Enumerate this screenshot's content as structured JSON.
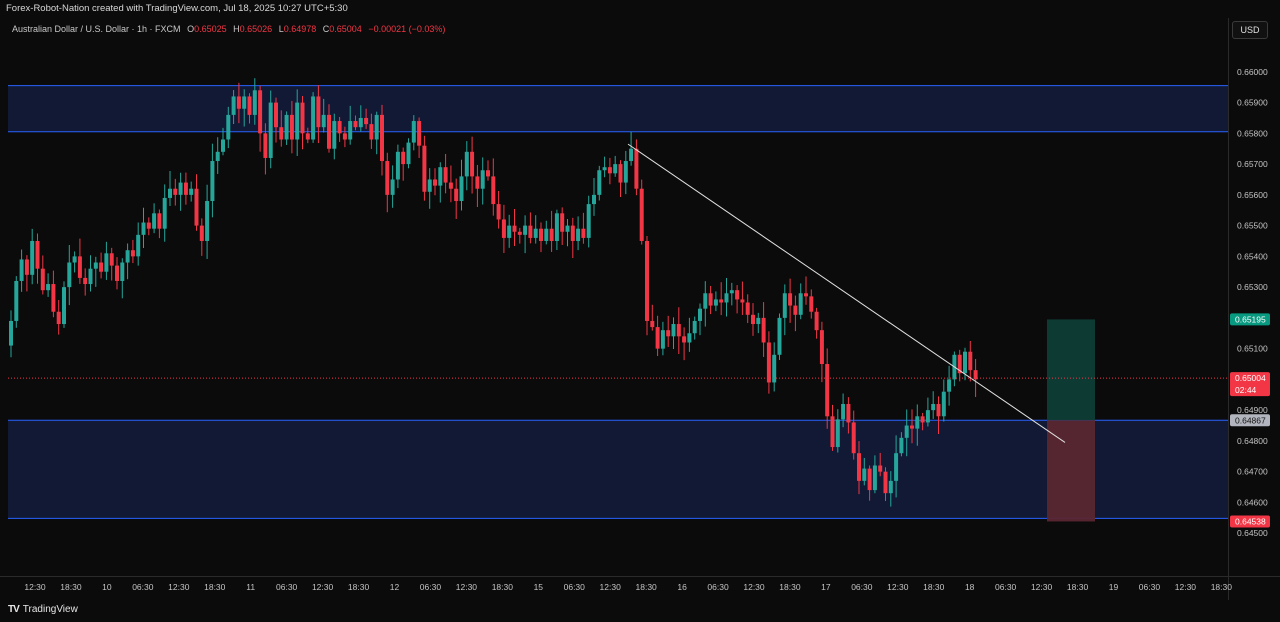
{
  "header": {
    "credit": "Forex-Robot-Nation created with TradingView.com, Jul 18, 2025 10:27 UTC+5:30",
    "symbol": "Australian Dollar / U.S. Dollar · 1h · FXCM",
    "open_label": "O",
    "open": "0.65025",
    "high_label": "H",
    "high": "0.65026",
    "low_label": "L",
    "low": "0.64978",
    "close_label": "C",
    "close": "0.65004",
    "change": "−0.00021 (−0.03%)",
    "currency_button": "USD"
  },
  "footer": {
    "brand": "TradingView",
    "brand_logo": "TV"
  },
  "colors": {
    "background": "#0b0b0b",
    "up": "#26a69a",
    "down": "#f23645",
    "zone_fill": "#121b3a",
    "zone_line": "#2962ff",
    "trendline": "#e0e0e0",
    "target_fill": "#0e3d36",
    "stop_fill": "#5a2630"
  },
  "chart_data": {
    "type": "candlestick",
    "y_ticks": [
      "0.66000",
      "0.65900",
      "0.65800",
      "0.65700",
      "0.65600",
      "0.65500",
      "0.65400",
      "0.65300",
      "0.65100",
      "0.64900",
      "0.64800",
      "0.64700",
      "0.64600",
      "0.64500"
    ],
    "ylim": [
      0.64455,
      0.66045
    ],
    "x_ticks": [
      "12:30",
      "18:30",
      "10",
      "06:30",
      "12:30",
      "18:30",
      "11",
      "06:30",
      "12:30",
      "18:30",
      "12",
      "06:30",
      "12:30",
      "18:30",
      "15",
      "06:30",
      "12:30",
      "18:30",
      "16",
      "06:30",
      "12:30",
      "18:30",
      "17",
      "06:30",
      "12:30",
      "18:30",
      "18",
      "06:30",
      "12:30",
      "18:30",
      "19",
      "06:30",
      "12:30",
      "18:30"
    ],
    "price_tags": [
      {
        "label": "0.65195",
        "value": 0.65195,
        "color": "#089981"
      },
      {
        "label": "0.65004",
        "value": 0.65004,
        "color": "#f23645",
        "sub": "02:44"
      },
      {
        "label": "0.64867",
        "value": 0.64867,
        "color": "#b2b5be"
      },
      {
        "label": "0.64538",
        "value": 0.64538,
        "color": "#f23645"
      }
    ],
    "zones": [
      {
        "top": 0.65955,
        "bottom": 0.65805
      },
      {
        "top": 0.64867,
        "bottom": 0.64548
      }
    ],
    "trendline": {
      "from": [
        0.65765
      ],
      "to": [
        0.64795
      ]
    },
    "position": {
      "entry": 0.64867,
      "target": 0.65195,
      "stop": 0.64538
    },
    "current_price": 0.65004,
    "closes": [
      0.6519,
      0.6532,
      0.6539,
      0.6534,
      0.6545,
      0.6536,
      0.6529,
      0.6531,
      0.6522,
      0.6518,
      0.653,
      0.6538,
      0.654,
      0.6533,
      0.6531,
      0.6536,
      0.6538,
      0.6535,
      0.6541,
      0.6537,
      0.6532,
      0.6538,
      0.6542,
      0.654,
      0.6547,
      0.6551,
      0.6549,
      0.6554,
      0.6549,
      0.6559,
      0.6562,
      0.656,
      0.6564,
      0.656,
      0.6562,
      0.655,
      0.6545,
      0.6558,
      0.6571,
      0.6574,
      0.6578,
      0.6586,
      0.6592,
      0.6588,
      0.6592,
      0.6586,
      0.6594,
      0.658,
      0.6572,
      0.659,
      0.6582,
      0.6578,
      0.6586,
      0.6578,
      0.659,
      0.658,
      0.6578,
      0.6592,
      0.6582,
      0.6586,
      0.6575,
      0.6584,
      0.658,
      0.6578,
      0.6584,
      0.6582,
      0.6585,
      0.6583,
      0.6578,
      0.6586,
      0.6571,
      0.656,
      0.6565,
      0.6574,
      0.657,
      0.6577,
      0.6584,
      0.6576,
      0.6561,
      0.6565,
      0.6563,
      0.6569,
      0.6564,
      0.6562,
      0.6558,
      0.6566,
      0.6574,
      0.6566,
      0.6562,
      0.6568,
      0.6566,
      0.6557,
      0.6552,
      0.6546,
      0.655,
      0.6548,
      0.6547,
      0.655,
      0.6546,
      0.6549,
      0.6545,
      0.6549,
      0.6545,
      0.6554,
      0.6548,
      0.655,
      0.6545,
      0.6549,
      0.6546,
      0.6557,
      0.656,
      0.6568,
      0.6569,
      0.6567,
      0.657,
      0.6564,
      0.6571,
      0.6575,
      0.6562,
      0.6545,
      0.6519,
      0.6517,
      0.651,
      0.6516,
      0.6514,
      0.6518,
      0.6514,
      0.6512,
      0.6515,
      0.6519,
      0.6523,
      0.6528,
      0.6524,
      0.6526,
      0.6525,
      0.6528,
      0.6529,
      0.6526,
      0.6525,
      0.6521,
      0.6518,
      0.652,
      0.6512,
      0.6499,
      0.6508,
      0.652,
      0.6528,
      0.6524,
      0.6521,
      0.6528,
      0.6527,
      0.6522,
      0.6516,
      0.6505,
      0.6488,
      0.6478,
      0.6487,
      0.6492,
      0.6486,
      0.6476,
      0.6467,
      0.6471,
      0.6464,
      0.6472,
      0.647,
      0.6463,
      0.6467,
      0.6476,
      0.6481,
      0.6485,
      0.6484,
      0.6488,
      0.6486,
      0.649,
      0.6492,
      0.6488,
      0.6496,
      0.65,
      0.6508,
      0.6502,
      0.6509,
      0.6503,
      0.65
    ]
  }
}
